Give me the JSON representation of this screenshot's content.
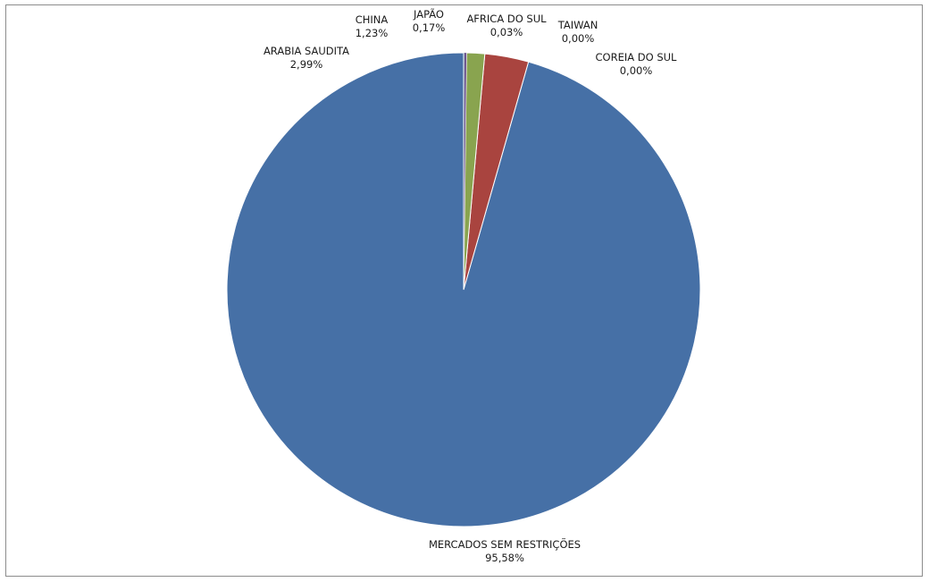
{
  "chart_data": {
    "type": "pie",
    "title": "",
    "start_angle_deg": 0,
    "direction": "counterclockwise",
    "legend": "none",
    "slices": [
      {
        "name": "MERCADOS SEM RESTRIÇÕES",
        "value": 95.58,
        "label": "95,58%",
        "color": "#4670A6"
      },
      {
        "name": "ARABIA SAUDITA",
        "value": 2.99,
        "label": "2,99%",
        "color": "#A9443F"
      },
      {
        "name": "CHINA",
        "value": 1.23,
        "label": "1,23%",
        "color": "#89A44F"
      },
      {
        "name": "JAPÃO",
        "value": 0.17,
        "label": "0,17%",
        "color": "#6E558E"
      },
      {
        "name": "AFRICA DO SUL",
        "value": 0.03,
        "label": "0,03%",
        "color": "#3E96AE"
      },
      {
        "name": "TAIWAN",
        "value": 0.0,
        "label": "0,00%",
        "color": "#E58A33"
      },
      {
        "name": "COREIA DO SUL",
        "value": 0.0,
        "label": "0,00%",
        "color": "#4D6F99"
      }
    ]
  }
}
